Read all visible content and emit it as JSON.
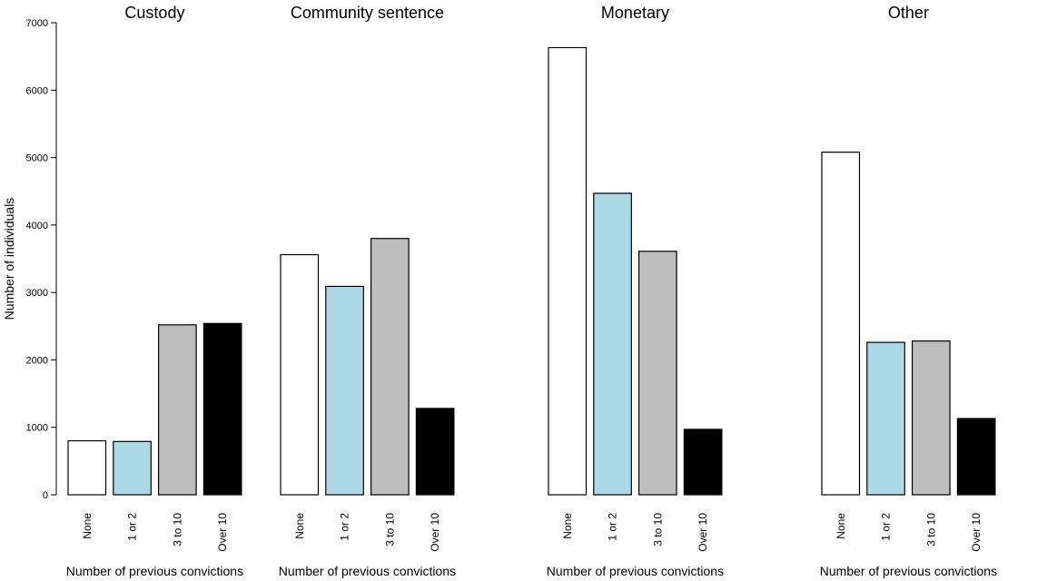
{
  "chart_data": {
    "type": "bar",
    "ylabel": "Number of individuals",
    "ylim": [
      0,
      7000
    ],
    "yticks": [
      0,
      1000,
      2000,
      3000,
      4000,
      5000,
      6000,
      7000
    ],
    "categories": [
      "None",
      "1 or 2",
      "3 to 10",
      "Over 10"
    ],
    "category_colors": [
      "#ffffff",
      "#add8e6",
      "#bebebe",
      "#000000"
    ],
    "grid": false,
    "panels": [
      {
        "title": "Custody",
        "xlabel": "Number of previous convictions",
        "values": [
          800,
          790,
          2520,
          2540
        ]
      },
      {
        "title": "Community sentence",
        "xlabel": "Number of previous convictions",
        "values": [
          3560,
          3090,
          3800,
          1280
        ]
      },
      {
        "title": "Monetary",
        "xlabel": "Number of previous convictions",
        "values": [
          6630,
          4470,
          3610,
          970
        ]
      },
      {
        "title": "Other",
        "xlabel": "Number of previous convictions",
        "values": [
          5080,
          2260,
          2280,
          1130
        ]
      }
    ]
  }
}
